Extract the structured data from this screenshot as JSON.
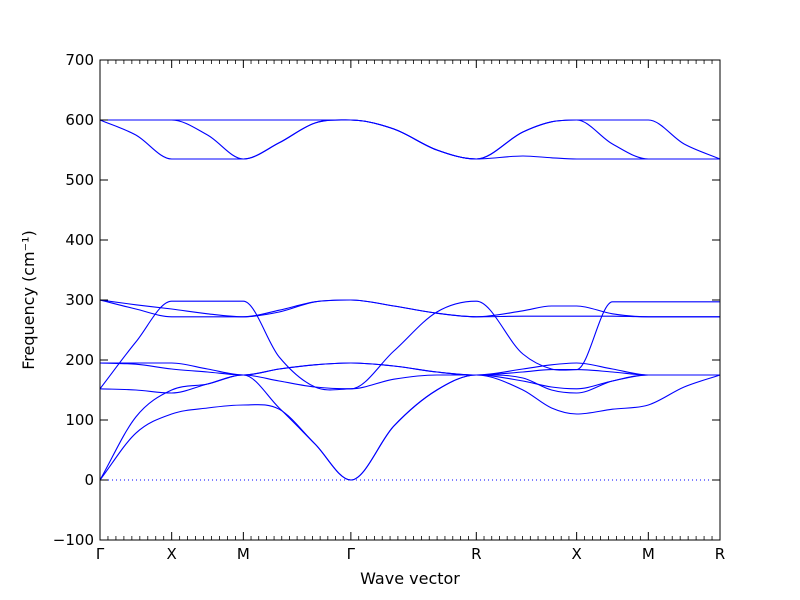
{
  "chart_data": {
    "type": "line",
    "title": "",
    "xlabel": "Wave vector",
    "ylabel": "Frequency (cm⁻¹)",
    "ylim": [
      -100,
      700
    ],
    "yticks": [
      -100,
      0,
      100,
      200,
      300,
      400,
      500,
      600,
      700
    ],
    "ytick_labels": [
      "−100",
      "0",
      "100",
      "200",
      "300",
      "400",
      "500",
      "600",
      "700"
    ],
    "x_path_positions": [
      0,
      1,
      2,
      3.5,
      5.25,
      6.65,
      7.65,
      8.65
    ],
    "x_path_labels": [
      "Γ",
      "X",
      "M",
      "Γ",
      "R",
      "X",
      "M",
      "R"
    ],
    "xlim": [
      0,
      8.65
    ],
    "grid": false,
    "line_color": "#0000ff",
    "zero_line": {
      "y": 0,
      "style": "dotted",
      "color": "#0000ff"
    },
    "series": [
      {
        "values": [
          [
            0,
            0
          ],
          [
            0.5,
            78
          ],
          [
            1,
            110
          ],
          [
            1.5,
            120
          ],
          [
            2,
            125
          ],
          [
            2.5,
            118
          ],
          [
            3,
            60
          ],
          [
            3.5,
            0
          ],
          [
            4.1,
            90
          ],
          [
            4.7,
            150
          ],
          [
            5.25,
            175
          ],
          [
            5.9,
            150
          ],
          [
            6.3,
            120
          ],
          [
            6.65,
            110
          ],
          [
            7.15,
            118
          ],
          [
            7.65,
            125
          ],
          [
            8.15,
            155
          ],
          [
            8.65,
            175
          ]
        ]
      },
      {
        "values": [
          [
            0,
            0
          ],
          [
            0.5,
            105
          ],
          [
            1,
            150
          ],
          [
            1.5,
            160
          ],
          [
            2,
            175
          ],
          [
            2.5,
            120
          ],
          [
            3,
            60
          ],
          [
            3.5,
            0
          ],
          [
            4.1,
            90
          ],
          [
            4.7,
            150
          ],
          [
            5.25,
            175
          ],
          [
            5.9,
            170
          ],
          [
            6.3,
            150
          ],
          [
            6.65,
            145
          ],
          [
            7.15,
            165
          ],
          [
            7.65,
            175
          ],
          [
            8.15,
            175
          ],
          [
            8.65,
            175
          ]
        ]
      },
      {
        "values": [
          [
            0,
            152
          ],
          [
            0.5,
            150
          ],
          [
            1,
            145
          ],
          [
            1.5,
            160
          ],
          [
            2,
            175
          ],
          [
            2.5,
            165
          ],
          [
            3,
            155
          ],
          [
            3.5,
            152
          ],
          [
            4.1,
            168
          ],
          [
            4.7,
            175
          ],
          [
            5.25,
            175
          ],
          [
            5.9,
            165
          ],
          [
            6.3,
            155
          ],
          [
            6.65,
            152
          ],
          [
            7.15,
            165
          ],
          [
            7.65,
            175
          ],
          [
            8.15,
            175
          ],
          [
            8.65,
            175
          ]
        ]
      },
      {
        "values": [
          [
            0,
            152
          ],
          [
            0.5,
            230
          ],
          [
            1,
            298
          ],
          [
            1.5,
            298
          ],
          [
            2,
            298
          ],
          [
            2.5,
            205
          ],
          [
            3,
            155
          ],
          [
            3.5,
            152
          ],
          [
            4.1,
            215
          ],
          [
            4.7,
            280
          ],
          [
            5.25,
            298
          ],
          [
            5.9,
            210
          ],
          [
            6.3,
            185
          ],
          [
            6.65,
            184
          ],
          [
            7.15,
            297
          ],
          [
            7.65,
            297
          ],
          [
            8.15,
            297
          ],
          [
            8.65,
            297
          ]
        ]
      },
      {
        "values": [
          [
            0,
            195
          ],
          [
            0.5,
            193
          ],
          [
            1,
            185
          ],
          [
            1.5,
            180
          ],
          [
            2,
            175
          ],
          [
            2.5,
            185
          ],
          [
            3,
            192
          ],
          [
            3.5,
            195
          ],
          [
            4.1,
            190
          ],
          [
            4.7,
            180
          ],
          [
            5.25,
            175
          ],
          [
            5.9,
            185
          ],
          [
            6.3,
            192
          ],
          [
            6.65,
            195
          ],
          [
            7.15,
            185
          ],
          [
            7.65,
            175
          ],
          [
            8.15,
            175
          ],
          [
            8.65,
            175
          ]
        ]
      },
      {
        "values": [
          [
            0,
            195
          ],
          [
            0.5,
            195
          ],
          [
            1,
            195
          ],
          [
            1.5,
            185
          ],
          [
            2,
            175
          ],
          [
            2.5,
            185
          ],
          [
            3,
            192
          ],
          [
            3.5,
            195
          ],
          [
            4.1,
            190
          ],
          [
            4.7,
            180
          ],
          [
            5.25,
            175
          ],
          [
            5.9,
            180
          ],
          [
            6.3,
            184
          ],
          [
            6.65,
            184
          ],
          [
            7.15,
            180
          ],
          [
            7.65,
            175
          ],
          [
            8.15,
            175
          ],
          [
            8.65,
            175
          ]
        ]
      },
      {
        "values": [
          [
            0,
            300
          ],
          [
            0.5,
            292
          ],
          [
            1,
            285
          ],
          [
            1.5,
            277
          ],
          [
            2,
            272
          ],
          [
            2.5,
            280
          ],
          [
            3,
            297
          ],
          [
            3.5,
            300
          ],
          [
            4.1,
            290
          ],
          [
            4.7,
            278
          ],
          [
            5.25,
            272
          ],
          [
            5.9,
            282
          ],
          [
            6.3,
            290
          ],
          [
            6.65,
            290
          ],
          [
            7.15,
            277
          ],
          [
            7.65,
            272
          ],
          [
            8.15,
            272
          ],
          [
            8.65,
            272
          ]
        ]
      },
      {
        "values": [
          [
            0,
            300
          ],
          [
            0.5,
            285
          ],
          [
            1,
            272
          ],
          [
            1.5,
            272
          ],
          [
            2,
            272
          ],
          [
            2.5,
            283
          ],
          [
            3,
            297
          ],
          [
            3.5,
            300
          ],
          [
            4.1,
            290
          ],
          [
            4.7,
            278
          ],
          [
            5.25,
            272
          ],
          [
            5.9,
            273
          ],
          [
            6.3,
            273
          ],
          [
            6.65,
            273
          ],
          [
            7.15,
            273
          ],
          [
            7.65,
            272
          ],
          [
            8.15,
            272
          ],
          [
            8.65,
            272
          ]
        ]
      },
      {
        "values": [
          [
            0,
            600
          ],
          [
            0.5,
            575
          ],
          [
            1,
            535
          ],
          [
            1.5,
            535
          ],
          [
            2,
            535
          ],
          [
            2.5,
            562
          ],
          [
            3,
            595
          ],
          [
            3.5,
            600
          ],
          [
            4.1,
            585
          ],
          [
            4.7,
            550
          ],
          [
            5.25,
            535
          ],
          [
            5.9,
            580
          ],
          [
            6.3,
            597
          ],
          [
            6.65,
            600
          ],
          [
            7.15,
            600
          ],
          [
            7.65,
            600
          ],
          [
            8.15,
            560
          ],
          [
            8.65,
            535
          ]
        ]
      },
      {
        "values": [
          [
            0,
            600
          ],
          [
            0.5,
            600
          ],
          [
            1,
            600
          ],
          [
            1.5,
            575
          ],
          [
            2,
            535
          ],
          [
            2.5,
            562
          ],
          [
            3,
            595
          ],
          [
            3.5,
            600
          ],
          [
            4.1,
            585
          ],
          [
            4.7,
            550
          ],
          [
            5.25,
            535
          ],
          [
            5.9,
            580
          ],
          [
            6.3,
            597
          ],
          [
            6.65,
            600
          ],
          [
            7.15,
            560
          ],
          [
            7.65,
            535
          ],
          [
            8.15,
            535
          ],
          [
            8.65,
            535
          ]
        ]
      },
      {
        "values": [
          [
            0,
            600
          ],
          [
            0.5,
            600
          ],
          [
            1,
            600
          ],
          [
            1.5,
            600
          ],
          [
            2,
            600
          ],
          [
            2.5,
            600
          ],
          [
            3,
            600
          ],
          [
            3.5,
            600
          ],
          [
            4.1,
            585
          ],
          [
            4.7,
            550
          ],
          [
            5.25,
            535
          ],
          [
            5.9,
            540
          ],
          [
            6.3,
            537
          ],
          [
            6.65,
            535
          ],
          [
            7.15,
            535
          ],
          [
            7.65,
            535
          ],
          [
            8.15,
            535
          ],
          [
            8.65,
            535
          ]
        ]
      }
    ]
  }
}
